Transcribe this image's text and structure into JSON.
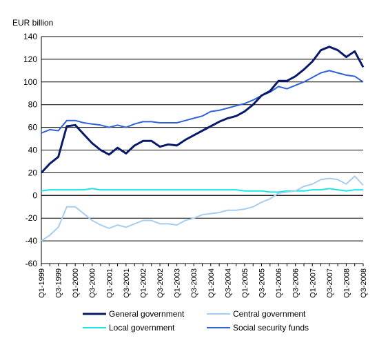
{
  "chart_data": {
    "type": "line",
    "title": "",
    "xlabel": "",
    "ylabel": "EUR billion",
    "ylim": [
      -60,
      140
    ],
    "yticks": [
      -60,
      -40,
      -20,
      0,
      20,
      40,
      60,
      80,
      100,
      120,
      140
    ],
    "grid": "horizontal",
    "legend_position": "bottom",
    "x": [
      "Q1-1999",
      "Q2-1999",
      "Q3-1999",
      "Q4-1999",
      "Q1-2000",
      "Q2-2000",
      "Q3-2000",
      "Q4-2000",
      "Q1-2001",
      "Q2-2001",
      "Q3-2001",
      "Q4-2001",
      "Q1-2002",
      "Q2-2002",
      "Q3-2002",
      "Q4-2002",
      "Q1-2003",
      "Q2-2003",
      "Q3-2003",
      "Q4-2003",
      "Q1-2004",
      "Q2-2004",
      "Q3-2004",
      "Q4-2004",
      "Q1-2005",
      "Q2-2005",
      "Q3-2005",
      "Q4-2005",
      "Q1-2006",
      "Q2-2006",
      "Q3-2006",
      "Q4-2006",
      "Q1-2007",
      "Q2-2007",
      "Q3-2007",
      "Q4-2007",
      "Q1-2008",
      "Q2-2008",
      "Q3-2008"
    ],
    "x_tick_labels": [
      "Q1-1999",
      "Q3-1999",
      "Q1-2000",
      "Q3-2000",
      "Q1-2001",
      "Q3-2001",
      "Q1-2002",
      "Q3-2002",
      "Q1-2003",
      "Q3-2003",
      "Q1-2004",
      "Q3-2004",
      "Q1-2005",
      "Q3-2005",
      "Q1-2006",
      "Q3-2006",
      "Q1-2007",
      "Q3-2007",
      "Q1-2008",
      "Q3-2008"
    ],
    "series": [
      {
        "name": "General government",
        "color": "#0a1a6b",
        "values": [
          20,
          28,
          34,
          61,
          62,
          54,
          46,
          40,
          36,
          42,
          37,
          44,
          48,
          48,
          43,
          45,
          44,
          49,
          53,
          57,
          61,
          65,
          68,
          70,
          74,
          80,
          88,
          92,
          101,
          101,
          105,
          111,
          118,
          128,
          131,
          128,
          122,
          127,
          113
        ]
      },
      {
        "name": "Central government",
        "color": "#a6cdf2",
        "values": [
          -40,
          -35,
          -28,
          -10,
          -10,
          -16,
          -22,
          -26,
          -29,
          -26,
          -28,
          -25,
          -22,
          -22,
          -25,
          -25,
          -26,
          -22,
          -20,
          -17,
          -16,
          -15,
          -13,
          -13,
          -12,
          -10,
          -6,
          -3,
          2,
          3,
          4,
          8,
          10,
          14,
          15,
          14,
          10,
          17,
          9
        ]
      },
      {
        "name": "Local government",
        "color": "#1fe5e5",
        "values": [
          4,
          5,
          5,
          5,
          5,
          5,
          6,
          5,
          5,
          5,
          5,
          5,
          5,
          5,
          5,
          5,
          5,
          5,
          5,
          5,
          5,
          5,
          5,
          5,
          4,
          4,
          4,
          3,
          3,
          4,
          4,
          4,
          5,
          5,
          6,
          5,
          4,
          5,
          5
        ]
      },
      {
        "name": "Social security funds",
        "color": "#2e62d6",
        "values": [
          55,
          58,
          57,
          66,
          66,
          64,
          63,
          62,
          60,
          62,
          60,
          63,
          65,
          65,
          64,
          64,
          64,
          66,
          68,
          70,
          74,
          75,
          77,
          79,
          81,
          84,
          88,
          91,
          96,
          94,
          97,
          100,
          104,
          108,
          110,
          108,
          106,
          105,
          100
        ]
      }
    ]
  }
}
